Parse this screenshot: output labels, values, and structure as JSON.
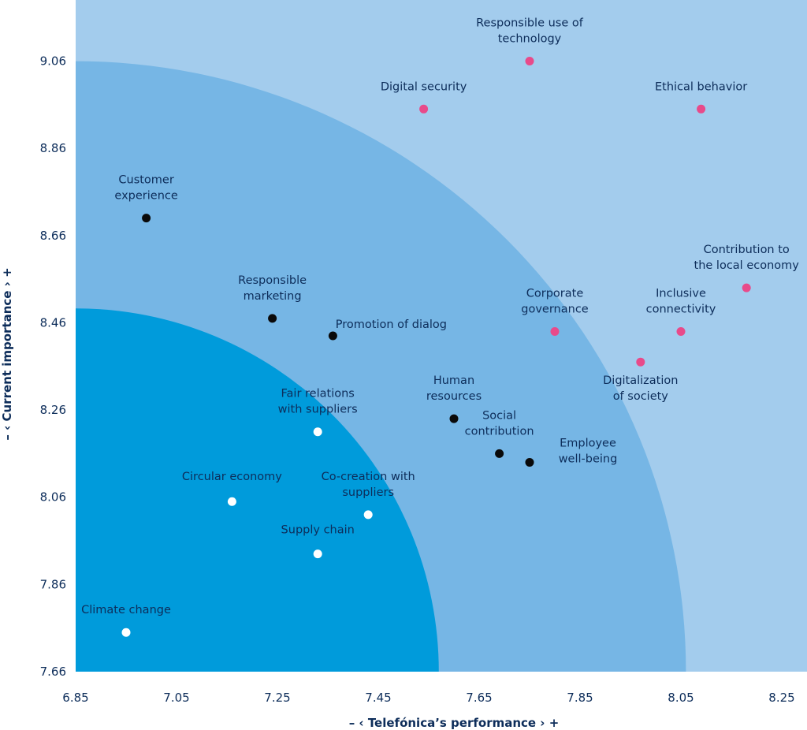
{
  "chart_data": {
    "type": "scatter",
    "title": "",
    "xlabel": "–  ‹ Telefónica’s performance  ›  +",
    "ylabel": "–  ‹ Current importance ›  +",
    "xlim": [
      6.85,
      8.3
    ],
    "ylim": [
      7.66,
      9.2
    ],
    "xticks": [
      "6.85",
      "7.05",
      "7.25",
      "7.45",
      "7.65",
      "7.85",
      "8.05",
      "8.25"
    ],
    "yticks": [
      "7.66",
      "7.86",
      "8.06",
      "8.26",
      "8.46",
      "8.66",
      "8.86",
      "9.06"
    ],
    "zones": [
      {
        "name": "outer",
        "color": "#a3cced"
      },
      {
        "name": "middle",
        "color": "#76b6e5",
        "radius_x": 1.21
      },
      {
        "name": "inner",
        "color": "#009bdb",
        "radius_x": 0.72
      }
    ],
    "series": [
      {
        "name": "high",
        "color": "#e84a8a",
        "points": [
          {
            "x": 7.54,
            "y": 8.95,
            "label": [
              "Digital security"
            ]
          },
          {
            "x": 7.75,
            "y": 9.06,
            "label": [
              "Responsible use of",
              "technology"
            ]
          },
          {
            "x": 8.09,
            "y": 8.95,
            "label": [
              "Ethical behavior"
            ]
          },
          {
            "x": 8.18,
            "y": 8.54,
            "label": [
              "Contribution to",
              "the local economy"
            ]
          },
          {
            "x": 7.8,
            "y": 8.44,
            "label": [
              "Corporate",
              "governance"
            ]
          },
          {
            "x": 8.05,
            "y": 8.44,
            "label": [
              "Inclusive",
              "connectivity"
            ]
          },
          {
            "x": 7.97,
            "y": 8.37,
            "label": [
              "Digitalization",
              "of society"
            ]
          }
        ]
      },
      {
        "name": "medium",
        "color": "#0a0a0a",
        "points": [
          {
            "x": 6.99,
            "y": 8.7,
            "label": [
              "Customer",
              "experience"
            ]
          },
          {
            "x": 7.24,
            "y": 8.47,
            "label": [
              "Responsible",
              "marketing"
            ]
          },
          {
            "x": 7.36,
            "y": 8.43,
            "label": [
              "Promotion of dialog"
            ]
          },
          {
            "x": 7.6,
            "y": 8.24,
            "label": [
              "Human",
              "resources"
            ]
          },
          {
            "x": 7.69,
            "y": 8.16,
            "label": [
              "Social",
              "contribution"
            ]
          },
          {
            "x": 7.75,
            "y": 8.14,
            "label": [
              "Employee",
              "well-being"
            ]
          }
        ]
      },
      {
        "name": "low",
        "color": "#ffffff",
        "points": [
          {
            "x": 7.33,
            "y": 8.21,
            "label": [
              "Fair relations",
              "with suppliers"
            ]
          },
          {
            "x": 7.16,
            "y": 8.05,
            "label": [
              "Circular economy"
            ]
          },
          {
            "x": 7.43,
            "y": 8.02,
            "label": [
              "Co-creation with",
              "suppliers"
            ]
          },
          {
            "x": 7.33,
            "y": 7.93,
            "label": [
              "Supply chain"
            ]
          },
          {
            "x": 6.95,
            "y": 7.75,
            "label": [
              "Climate change"
            ]
          }
        ]
      }
    ]
  }
}
